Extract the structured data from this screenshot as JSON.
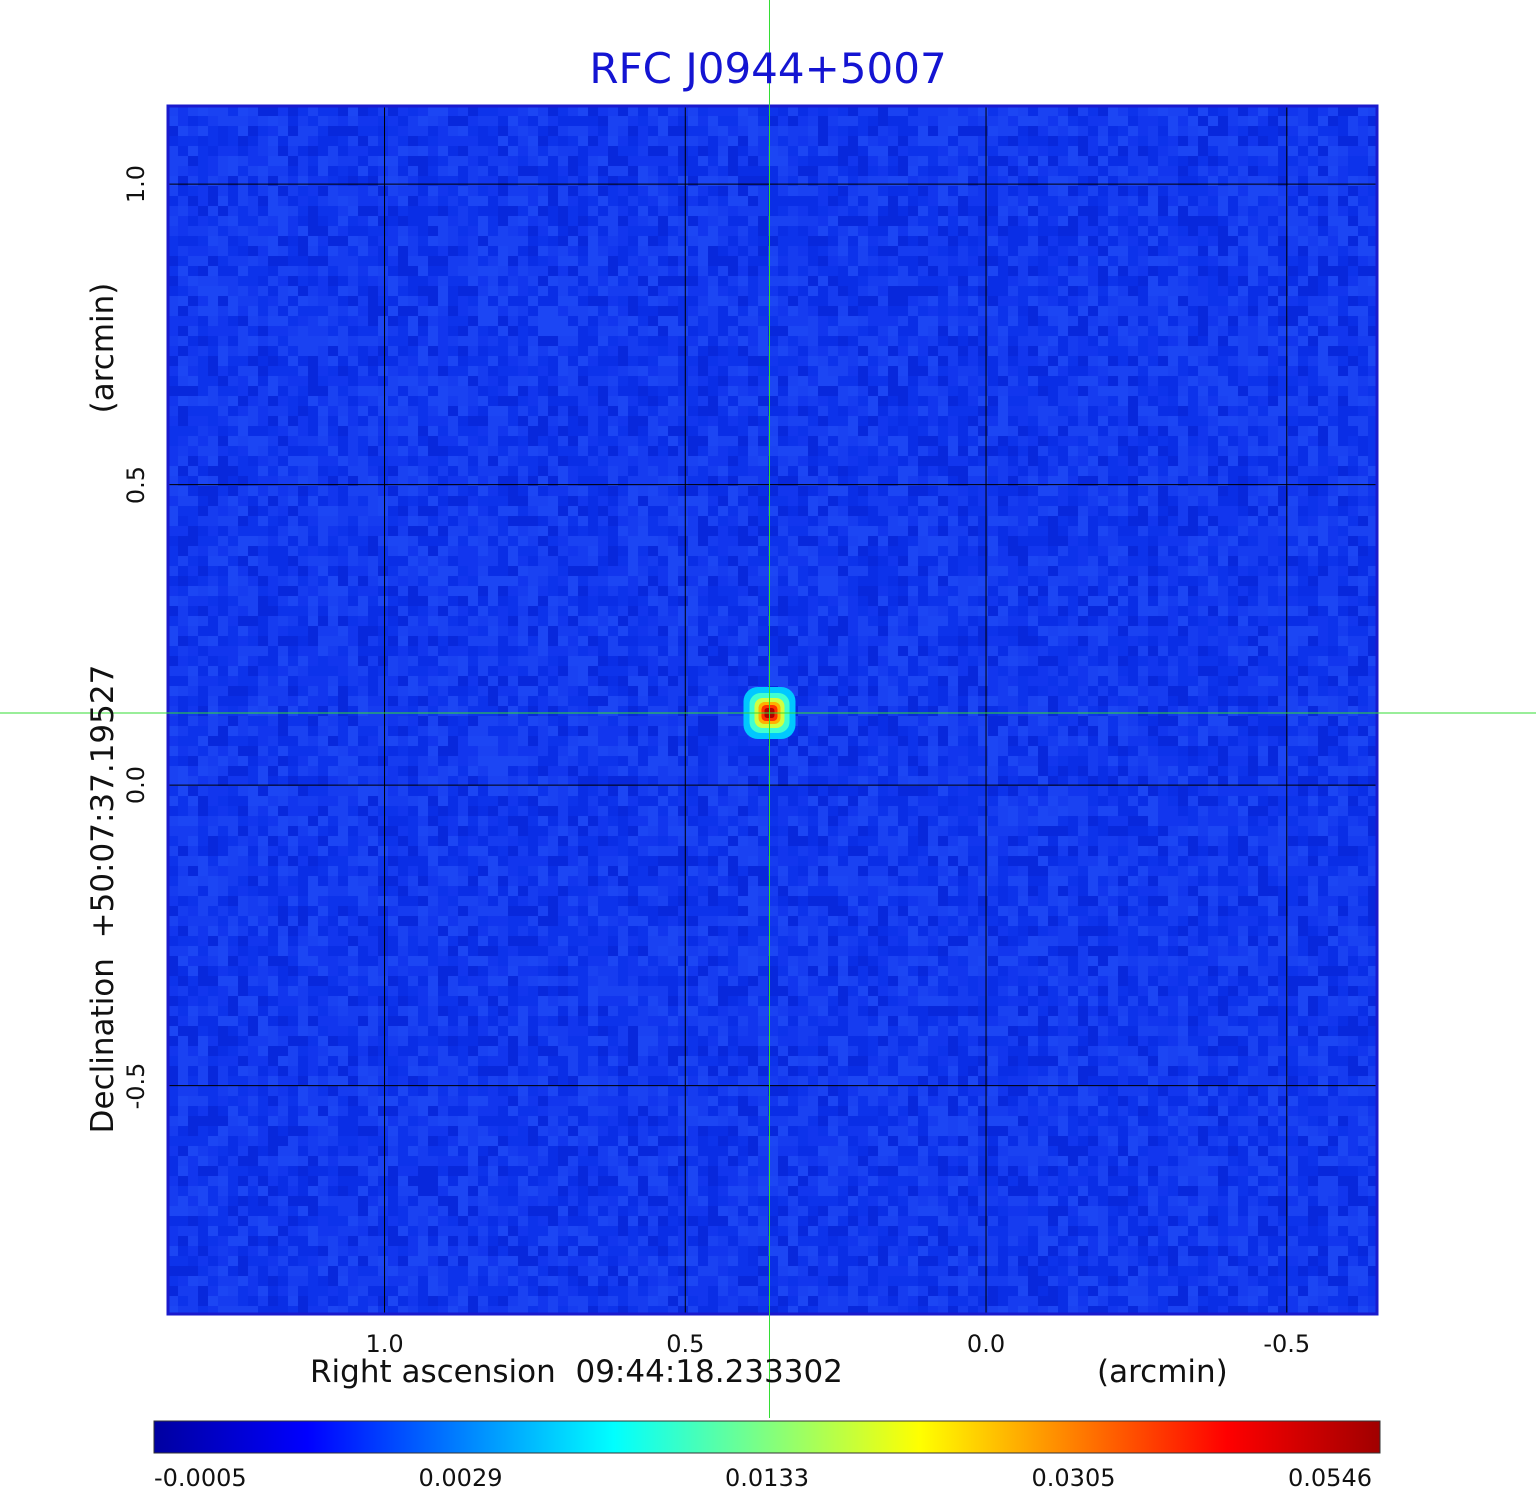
{
  "chart_data": {
    "type": "heatmap",
    "title": "RFC J0944+5007",
    "xlabel": "Right ascension  09:44:18.233302",
    "xlabel_unit": "(arcmin)",
    "ylabel": "Declination  +50:07:37.19527",
    "ylabel_unit": "(arcmin)",
    "x_ticks": [
      {
        "value": 1.0,
        "label": "1.0"
      },
      {
        "value": 0.5,
        "label": "0.5"
      },
      {
        "value": 0.0,
        "label": "0.0"
      },
      {
        "value": -0.5,
        "label": "-0.5"
      }
    ],
    "y_ticks": [
      {
        "value": 1.0,
        "label": "1.0"
      },
      {
        "value": 0.5,
        "label": "0.5"
      },
      {
        "value": 0.0,
        "label": "0.0"
      },
      {
        "value": -0.5,
        "label": "-0.5"
      }
    ],
    "xlim": [
      1.36,
      -0.65
    ],
    "ylim": [
      -0.88,
      1.13
    ],
    "grid": true,
    "source": {
      "ra_offset_arcmin": 0.36,
      "dec_offset_arcmin": 0.12,
      "peak": 0.0546
    },
    "crosshair": {
      "x_arcmin": 0.36,
      "y_arcmin": 0.12
    },
    "colorbar": {
      "ticks": [
        "-0.0005",
        "0.0029",
        "0.0133",
        "0.0305",
        "0.0546"
      ],
      "colors": [
        "#0000a0",
        "#0000ff",
        "#0080ff",
        "#00ffff",
        "#80ff80",
        "#ffff00",
        "#ff8000",
        "#ff0000",
        "#a00000"
      ]
    },
    "background_color": "#1236ee",
    "frame_color": "#1a1acd",
    "crosshair_color": "#33dd33"
  }
}
